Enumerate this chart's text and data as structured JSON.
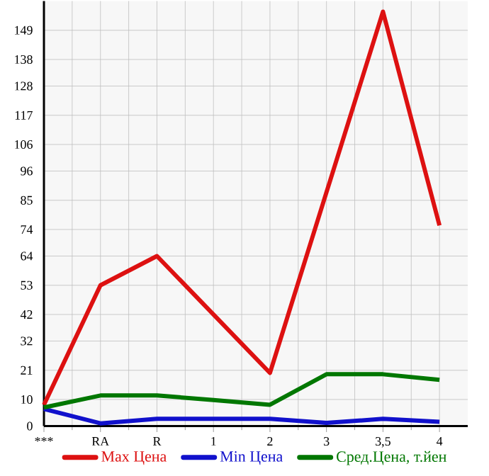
{
  "chart_data": {
    "type": "line",
    "categories": [
      "***",
      "RA",
      "R",
      "1",
      "2",
      "3",
      "3,5",
      "4"
    ],
    "series": [
      {
        "name": "Max Цена",
        "color": "#dd1111",
        "values": [
          8,
          53,
          64,
          42,
          20,
          88,
          156,
          75.5
        ]
      },
      {
        "name": "Min Цена",
        "color": "#1111cc",
        "values": [
          6.4,
          1,
          2.7,
          2.7,
          2.7,
          1.2,
          2.7,
          1.6
        ]
      },
      {
        "name": "Сред.Цена, т.йен",
        "color": "#007700",
        "values": [
          7,
          11.5,
          11.5,
          9.8,
          8,
          19.5,
          19.5,
          17.4
        ]
      }
    ],
    "ylim": [
      0,
      160
    ],
    "yticks": [
      0,
      10,
      21,
      32,
      42,
      53,
      64,
      74,
      85,
      96,
      106,
      117,
      128,
      138,
      149
    ],
    "grid": true,
    "legend": "bottom",
    "marker": "none",
    "line_style": "solid"
  }
}
